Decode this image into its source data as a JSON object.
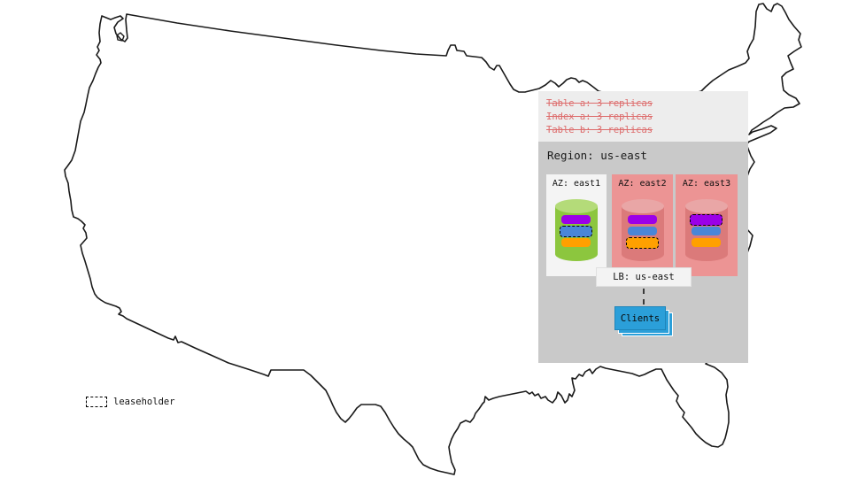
{
  "schema_panel": {
    "lines": [
      {
        "text": "Table a: 3 replicas"
      },
      {
        "text": "Index a: 3 replicas"
      },
      {
        "text": "Table b: 3 replicas"
      }
    ],
    "strikethrough": true
  },
  "region": {
    "title": "Region: us-east",
    "azs": [
      {
        "label": "AZ: east1",
        "cylinder": "green",
        "highlighted": false,
        "replicas": [
          {
            "color": "purple",
            "leaseholder": false
          },
          {
            "color": "blue",
            "leaseholder": true
          },
          {
            "color": "orange",
            "leaseholder": false
          }
        ]
      },
      {
        "label": "AZ: east2",
        "cylinder": "red",
        "highlighted": true,
        "replicas": [
          {
            "color": "purple",
            "leaseholder": false
          },
          {
            "color": "blue",
            "leaseholder": false
          },
          {
            "color": "orange",
            "leaseholder": true
          }
        ]
      },
      {
        "label": "AZ: east3",
        "cylinder": "red",
        "highlighted": true,
        "replicas": [
          {
            "color": "purple",
            "leaseholder": true
          },
          {
            "color": "blue",
            "leaseholder": false
          },
          {
            "color": "orange",
            "leaseholder": false
          }
        ]
      }
    ],
    "lb_label": "LB: us-east",
    "clients_label": "Clients"
  },
  "legend": {
    "label": "leaseholder"
  },
  "colors": {
    "purple": "#9b00e8",
    "blue": "#4a86d8",
    "orange": "#ffa000",
    "green_cylinder": "#8cc63e",
    "green_cylinder_top": "#b4db79",
    "red_cylinder": "#db7a7a",
    "red_cylinder_top": "#e9a6a6",
    "az_highlight": "#ec9494",
    "az_plain": "#f4f4f4",
    "panel_dark": "#c9c9c9",
    "panel_light": "#ededed",
    "clients_blue": "#2b9fd9",
    "schema_text": "#dd6b6b",
    "map_stroke": "#1a1a1a"
  }
}
